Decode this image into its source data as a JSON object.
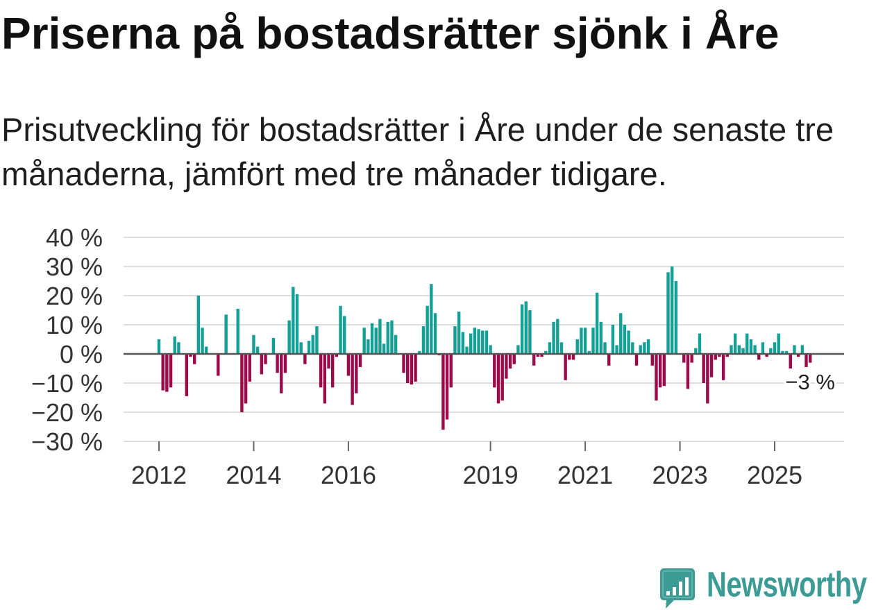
{
  "chart_data": {
    "type": "bar",
    "title": "Priserna på bostadsrätter sjönk i Åre",
    "subtitle": "Prisutveckling för bostadsrätter i Åre under de senaste tre månaderna, jämfört med tre månader tidigare.",
    "xlabel": "",
    "ylabel": "",
    "ylim": [
      -30,
      40
    ],
    "yticks": [
      40,
      30,
      20,
      10,
      0,
      -10,
      -20,
      -30
    ],
    "ytick_labels": [
      "40 %",
      "30 %",
      "20 %",
      "10 %",
      "0 %",
      "−10 %",
      "−20 %",
      "−30 %"
    ],
    "xticks": [
      {
        "label": "2012",
        "year": 2012
      },
      {
        "label": "2014",
        "year": 2014
      },
      {
        "label": "2016",
        "year": 2016
      },
      {
        "label": "2019",
        "year": 2019
      },
      {
        "label": "2021",
        "year": 2021
      },
      {
        "label": "2023",
        "year": 2023
      },
      {
        "label": "2025",
        "year": 2025
      }
    ],
    "start_year": 2012,
    "start_month": 1,
    "values": [
      5,
      -12.5,
      -13,
      -11.5,
      6,
      4,
      0,
      -14.5,
      -1,
      -3.5,
      20,
      9,
      2.5,
      0,
      0,
      -7.5,
      0,
      13.5,
      0,
      0,
      15.5,
      -20,
      -17,
      -9.5,
      6.5,
      2.5,
      -7,
      -3.5,
      0,
      5.5,
      -6.5,
      -13.5,
      -6.5,
      11.5,
      23,
      20.5,
      4,
      -3.5,
      4.5,
      6.5,
      9.5,
      -11.5,
      -17,
      -5,
      -11.5,
      -1,
      16.5,
      13,
      -7.5,
      -17.5,
      -13.5,
      -4.5,
      9,
      5,
      10.5,
      9,
      12,
      3.5,
      11,
      11.5,
      6.5,
      0,
      -6.5,
      -10,
      -10.5,
      -9.5,
      1,
      9.5,
      16.5,
      24,
      14,
      -0.5,
      -26,
      -22.5,
      -11.5,
      9.5,
      14.5,
      7.5,
      2.5,
      7,
      9,
      8.5,
      8,
      8,
      3,
      -11.5,
      -17,
      -16,
      -8.5,
      -5,
      -3.5,
      3,
      17,
      18,
      15,
      -4,
      -1,
      -1,
      1,
      4,
      11,
      12,
      4,
      -9,
      -2,
      -2,
      5,
      9,
      9,
      1,
      9,
      21,
      11,
      4,
      -4,
      10,
      3,
      14,
      10,
      8,
      4,
      -4,
      3,
      4,
      5,
      -4,
      -16,
      -11.5,
      -11,
      28,
      30,
      25,
      0,
      -3,
      -12,
      -3,
      2,
      7,
      -10,
      -17,
      -8,
      -2,
      -1,
      -9,
      -1,
      3,
      7,
      3,
      2,
      7,
      5,
      3,
      -2,
      4,
      -1,
      2,
      4,
      7,
      1,
      1,
      -5,
      3,
      -1,
      3,
      -4.5,
      -3
    ],
    "annotation": {
      "text": "−3 %",
      "value": -3,
      "month_index": 165
    },
    "grid": true,
    "colors": {
      "positive": "#14a096",
      "negative": "#9c0a4b",
      "zero_line": "#555555",
      "grid": "#dddddd",
      "tick": "#666666"
    }
  },
  "branding": {
    "logo_text": "Newsworthy",
    "logo_icon": "bar-chart-speech-bubble-icon",
    "color": "#3d9b95"
  }
}
